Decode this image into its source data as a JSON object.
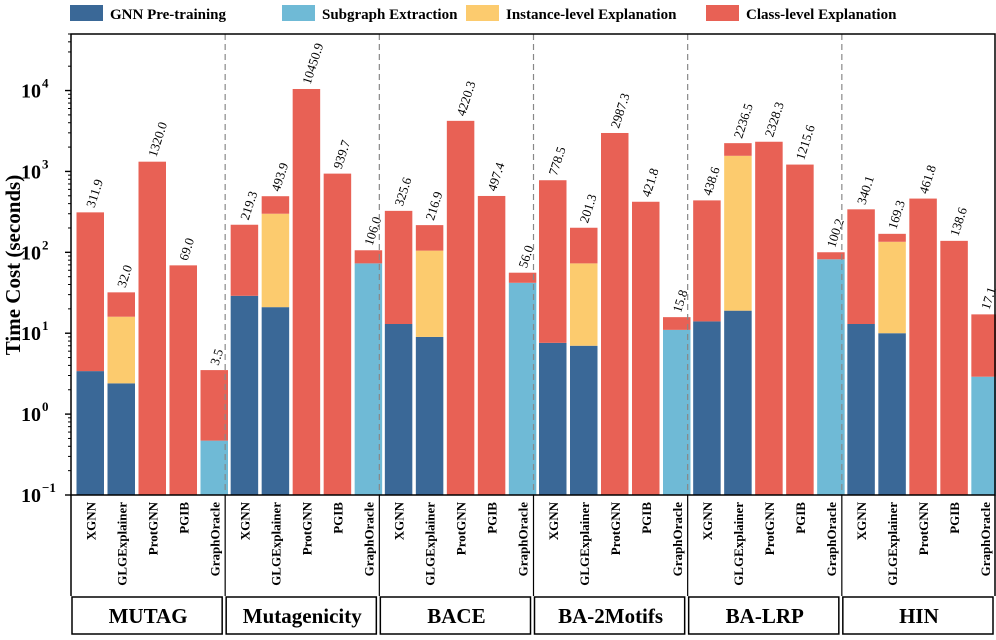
{
  "chart_data": {
    "type": "bar",
    "stacked": true,
    "yscale": "log",
    "ylabel": "Time Cost (seconds)",
    "ylim": [
      0.1,
      50000
    ],
    "yticks": [
      {
        "value": 0.1,
        "base": "10",
        "exp": "−1"
      },
      {
        "value": 1,
        "base": "10",
        "exp": "0"
      },
      {
        "value": 10,
        "base": "10",
        "exp": "1"
      },
      {
        "value": 100,
        "base": "10",
        "exp": "2"
      },
      {
        "value": 1000,
        "base": "10",
        "exp": "3"
      },
      {
        "value": 10000,
        "base": "10",
        "exp": "4"
      }
    ],
    "legend": [
      {
        "name": "GNN Pre-training",
        "color": "#3a6897"
      },
      {
        "name": "Subgraph Extraction",
        "color": "#6fbad6"
      },
      {
        "name": "Instance-level Explanation",
        "color": "#fccb6e"
      },
      {
        "name": "Class-level Explanation",
        "color": "#e86155"
      }
    ],
    "methods": [
      "XGNN",
      "GLGExplainer",
      "ProtGNN",
      "PGIB",
      "GraphOracle"
    ],
    "groups": [
      {
        "dataset": "MUTAG",
        "bars": [
          {
            "method": "XGNN",
            "total": 311.9,
            "label": "311.9",
            "segments": [
              {
                "series": 0,
                "top": 3.4
              },
              {
                "series": 3,
                "top": 311.9
              }
            ]
          },
          {
            "method": "GLGExplainer",
            "total": 32.0,
            "label": "32.0",
            "segments": [
              {
                "series": 0,
                "top": 2.4
              },
              {
                "series": 2,
                "top": 16
              },
              {
                "series": 3,
                "top": 32.0
              }
            ]
          },
          {
            "method": "ProtGNN",
            "total": 1320.0,
            "label": "1320.0",
            "segments": [
              {
                "series": 3,
                "top": 1320.0
              }
            ]
          },
          {
            "method": "PGIB",
            "total": 69.0,
            "label": "69.0",
            "segments": [
              {
                "series": 3,
                "top": 69.0
              }
            ]
          },
          {
            "method": "GraphOracle",
            "total": 3.5,
            "label": "3.5",
            "segments": [
              {
                "series": 1,
                "top": 0.47
              },
              {
                "series": 3,
                "top": 3.5
              }
            ]
          }
        ]
      },
      {
        "dataset": "Mutagenicity",
        "bars": [
          {
            "method": "XGNN",
            "total": 219.3,
            "label": "219.3",
            "segments": [
              {
                "series": 0,
                "top": 29
              },
              {
                "series": 3,
                "top": 219.3
              }
            ]
          },
          {
            "method": "GLGExplainer",
            "total": 493.9,
            "label": "493.9",
            "segments": [
              {
                "series": 0,
                "top": 21
              },
              {
                "series": 2,
                "top": 300
              },
              {
                "series": 3,
                "top": 493.9
              }
            ]
          },
          {
            "method": "ProtGNN",
            "total": 10450.9,
            "label": "10450.9",
            "segments": [
              {
                "series": 3,
                "top": 10450.9
              }
            ]
          },
          {
            "method": "PGIB",
            "total": 939.7,
            "label": "939.7",
            "segments": [
              {
                "series": 3,
                "top": 939.7
              }
            ]
          },
          {
            "method": "GraphOracle",
            "total": 106.0,
            "label": "106.0",
            "segments": [
              {
                "series": 1,
                "top": 73
              },
              {
                "series": 3,
                "top": 106.0
              }
            ]
          }
        ]
      },
      {
        "dataset": "BACE",
        "bars": [
          {
            "method": "XGNN",
            "total": 325.6,
            "label": "325.6",
            "segments": [
              {
                "series": 0,
                "top": 13
              },
              {
                "series": 3,
                "top": 325.6
              }
            ]
          },
          {
            "method": "GLGExplainer",
            "total": 216.9,
            "label": "216.9",
            "segments": [
              {
                "series": 0,
                "top": 9
              },
              {
                "series": 2,
                "top": 105
              },
              {
                "series": 3,
                "top": 216.9
              }
            ]
          },
          {
            "method": "ProtGNN",
            "total": 4220.3,
            "label": "4220.3",
            "segments": [
              {
                "series": 3,
                "top": 4220.3
              }
            ]
          },
          {
            "method": "PGIB",
            "total": 497.4,
            "label": "497.4",
            "segments": [
              {
                "series": 3,
                "top": 497.4
              }
            ]
          },
          {
            "method": "GraphOracle",
            "total": 56.0,
            "label": "56.0",
            "segments": [
              {
                "series": 1,
                "top": 42
              },
              {
                "series": 3,
                "top": 56.0
              }
            ]
          }
        ]
      },
      {
        "dataset": "BA-2Motifs",
        "bars": [
          {
            "method": "XGNN",
            "total": 778.5,
            "label": "778.5",
            "segments": [
              {
                "series": 0,
                "top": 7.6
              },
              {
                "series": 3,
                "top": 778.5
              }
            ]
          },
          {
            "method": "GLGExplainer",
            "total": 201.3,
            "label": "201.3",
            "segments": [
              {
                "series": 0,
                "top": 7
              },
              {
                "series": 2,
                "top": 73
              },
              {
                "series": 3,
                "top": 201.3
              }
            ]
          },
          {
            "method": "ProtGNN",
            "total": 2987.3,
            "label": "2987.3",
            "segments": [
              {
                "series": 3,
                "top": 2987.3
              }
            ]
          },
          {
            "method": "PGIB",
            "total": 421.8,
            "label": "421.8",
            "segments": [
              {
                "series": 3,
                "top": 421.8
              }
            ]
          },
          {
            "method": "GraphOracle",
            "total": 15.8,
            "label": "15.8",
            "segments": [
              {
                "series": 1,
                "top": 11
              },
              {
                "series": 3,
                "top": 15.8
              }
            ]
          }
        ]
      },
      {
        "dataset": "BA-LRP",
        "bars": [
          {
            "method": "XGNN",
            "total": 438.6,
            "label": "438.6",
            "segments": [
              {
                "series": 0,
                "top": 14
              },
              {
                "series": 3,
                "top": 438.6
              }
            ]
          },
          {
            "method": "GLGExplainer",
            "total": 2236.5,
            "label": "2236.5",
            "segments": [
              {
                "series": 0,
                "top": 19
              },
              {
                "series": 2,
                "top": 1560
              },
              {
                "series": 3,
                "top": 2236.5
              }
            ]
          },
          {
            "method": "ProtGNN",
            "total": 2328.3,
            "label": "2328.3",
            "segments": [
              {
                "series": 3,
                "top": 2328.3
              }
            ]
          },
          {
            "method": "PGIB",
            "total": 1215.6,
            "label": "1215.6",
            "segments": [
              {
                "series": 3,
                "top": 1215.6
              }
            ]
          },
          {
            "method": "GraphOracle",
            "total": 100.2,
            "label": "100.2",
            "segments": [
              {
                "series": 1,
                "top": 82
              },
              {
                "series": 3,
                "top": 100.2
              }
            ]
          }
        ]
      },
      {
        "dataset": "HIN",
        "bars": [
          {
            "method": "XGNN",
            "total": 340.1,
            "label": "340.1",
            "segments": [
              {
                "series": 0,
                "top": 13
              },
              {
                "series": 3,
                "top": 340.1
              }
            ]
          },
          {
            "method": "GLGExplainer",
            "total": 169.3,
            "label": "169.3",
            "segments": [
              {
                "series": 0,
                "top": 10
              },
              {
                "series": 2,
                "top": 135
              },
              {
                "series": 3,
                "top": 169.3
              }
            ]
          },
          {
            "method": "ProtGNN",
            "total": 461.8,
            "label": "461.8",
            "segments": [
              {
                "series": 3,
                "top": 461.8
              }
            ]
          },
          {
            "method": "PGIB",
            "total": 138.6,
            "label": "138.6",
            "segments": [
              {
                "series": 3,
                "top": 138.6
              }
            ]
          },
          {
            "method": "GraphOracle",
            "total": 17.1,
            "label": "17.1",
            "segments": [
              {
                "series": 1,
                "top": 2.9
              },
              {
                "series": 3,
                "top": 17.1
              }
            ]
          }
        ]
      }
    ]
  }
}
